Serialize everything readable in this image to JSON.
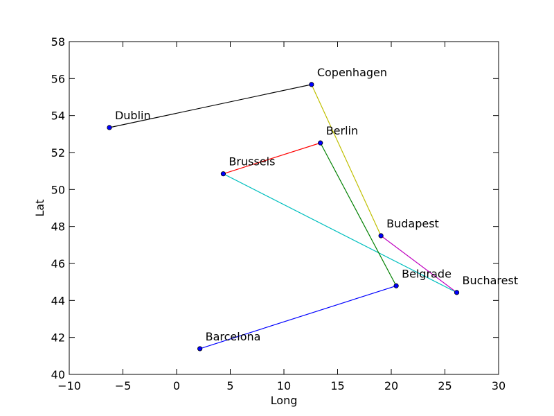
{
  "chart_data": {
    "type": "scatter",
    "xlabel": "Long",
    "ylabel": "Lat",
    "xlim": [
      -10,
      30
    ],
    "ylim": [
      40,
      58
    ],
    "xticks": [
      -10,
      -5,
      0,
      5,
      10,
      15,
      20,
      25,
      30
    ],
    "yticks": [
      40,
      42,
      44,
      46,
      48,
      50,
      52,
      54,
      56,
      58
    ],
    "point_color": "#0000ff",
    "points": [
      {
        "label": "Dublin",
        "x": -6.26,
        "y": 53.35
      },
      {
        "label": "Copenhagen",
        "x": 12.57,
        "y": 55.68
      },
      {
        "label": "Berlin",
        "x": 13.4,
        "y": 52.52
      },
      {
        "label": "Brussels",
        "x": 4.35,
        "y": 50.85
      },
      {
        "label": "Budapest",
        "x": 19.04,
        "y": 47.5
      },
      {
        "label": "Bucharest",
        "x": 26.1,
        "y": 44.43
      },
      {
        "label": "Belgrade",
        "x": 20.46,
        "y": 44.79
      },
      {
        "label": "Barcelona",
        "x": 2.17,
        "y": 41.39
      }
    ],
    "segments": [
      {
        "from": "Dublin",
        "to": "Copenhagen",
        "color": "#000000"
      },
      {
        "from": "Copenhagen",
        "to": "Budapest",
        "color": "#bfbf00"
      },
      {
        "from": "Budapest",
        "to": "Bucharest",
        "color": "#bf00bf"
      },
      {
        "from": "Bucharest",
        "to": "Brussels",
        "color": "#00bfbf"
      },
      {
        "from": "Brussels",
        "to": "Berlin",
        "color": "#ff0000"
      },
      {
        "from": "Berlin",
        "to": "Belgrade",
        "color": "#008000"
      },
      {
        "from": "Belgrade",
        "to": "Barcelona",
        "color": "#0000ff"
      }
    ]
  }
}
